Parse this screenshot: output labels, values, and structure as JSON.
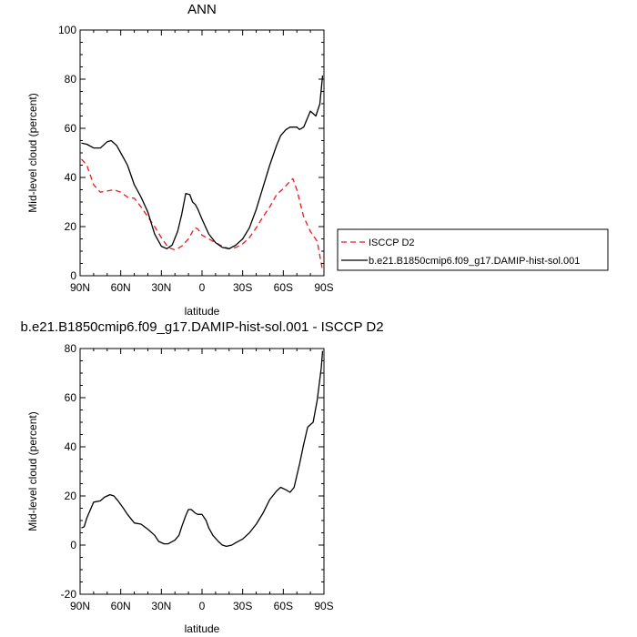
{
  "chart_data": [
    {
      "type": "line",
      "title": "ANN",
      "xlabel": "latitude",
      "ylabel": "Mid-level cloud (percent)",
      "xlim": [
        90,
        -90
      ],
      "ylim": [
        0,
        100
      ],
      "x_ticks": [
        {
          "value": 90,
          "label": "90N"
        },
        {
          "value": 60,
          "label": "60N"
        },
        {
          "value": 30,
          "label": "30N"
        },
        {
          "value": 0,
          "label": "0"
        },
        {
          "value": -30,
          "label": "30S"
        },
        {
          "value": -60,
          "label": "60S"
        },
        {
          "value": -90,
          "label": "90S"
        }
      ],
      "y_ticks": [
        0,
        20,
        40,
        60,
        80,
        100
      ],
      "grid": false,
      "legend_placement": "right",
      "series": [
        {
          "name": "ISCCP D2",
          "color": "#e8191e",
          "dash": "dashed",
          "points": [
            [
              89,
              47.5
            ],
            [
              85,
              45
            ],
            [
              80,
              37
            ],
            [
              75,
              34
            ],
            [
              70,
              34.5
            ],
            [
              65,
              35
            ],
            [
              60,
              34
            ],
            [
              55,
              32
            ],
            [
              50,
              31.5
            ],
            [
              45,
              28
            ],
            [
              40,
              24
            ],
            [
              35,
              20
            ],
            [
              30,
              15.5
            ],
            [
              25,
              11.5
            ],
            [
              20,
              10.5
            ],
            [
              15,
              12
            ],
            [
              10,
              15
            ],
            [
              7,
              18
            ],
            [
              5,
              19.5
            ],
            [
              3,
              19
            ],
            [
              0,
              16.5
            ],
            [
              -5,
              15
            ],
            [
              -10,
              13.5
            ],
            [
              -15,
              12
            ],
            [
              -20,
              11
            ],
            [
              -25,
              11.5
            ],
            [
              -30,
              13
            ],
            [
              -35,
              15.5
            ],
            [
              -40,
              19.5
            ],
            [
              -45,
              24
            ],
            [
              -50,
              28
            ],
            [
              -55,
              33
            ],
            [
              -60,
              35.5
            ],
            [
              -65,
              38.5
            ],
            [
              -67,
              39.5
            ],
            [
              -70,
              35
            ],
            [
              -75,
              24
            ],
            [
              -80,
              18
            ],
            [
              -85,
              14
            ],
            [
              -89,
              2
            ]
          ]
        },
        {
          "name": "b.e21.B1850cmip6.f09_g17.DAMIP-hist-sol.001",
          "color": "#000000",
          "dash": "solid",
          "points": [
            [
              89,
              54
            ],
            [
              85,
              53.5
            ],
            [
              80,
              52
            ],
            [
              75,
              52
            ],
            [
              70,
              54.5
            ],
            [
              67,
              55
            ],
            [
              63,
              53
            ],
            [
              60,
              50
            ],
            [
              55,
              45
            ],
            [
              50,
              37
            ],
            [
              45,
              32
            ],
            [
              40,
              26
            ],
            [
              35,
              17
            ],
            [
              30,
              12
            ],
            [
              26,
              11
            ],
            [
              22,
              12.5
            ],
            [
              18,
              18
            ],
            [
              15,
              25
            ],
            [
              12,
              33.5
            ],
            [
              9,
              33
            ],
            [
              7,
              30
            ],
            [
              5,
              29
            ],
            [
              3,
              27
            ],
            [
              0,
              23
            ],
            [
              -5,
              17
            ],
            [
              -10,
              13.5
            ],
            [
              -15,
              11.5
            ],
            [
              -20,
              11
            ],
            [
              -25,
              12.5
            ],
            [
              -30,
              15
            ],
            [
              -35,
              19.5
            ],
            [
              -40,
              27
            ],
            [
              -45,
              36
            ],
            [
              -50,
              45
            ],
            [
              -55,
              53
            ],
            [
              -58,
              57
            ],
            [
              -62,
              59.5
            ],
            [
              -65,
              60.5
            ],
            [
              -70,
              60.5
            ],
            [
              -72,
              59.5
            ],
            [
              -75,
              60.5
            ],
            [
              -80,
              67
            ],
            [
              -84,
              65
            ],
            [
              -87,
              70
            ],
            [
              -89,
              81.5
            ]
          ]
        }
      ]
    },
    {
      "type": "line",
      "title": "b.e21.B1850cmip6.f09_g17.DAMIP-hist-sol.001 - ISCCP D2",
      "xlabel": "latitude",
      "ylabel": "Mid-level cloud (percent)",
      "xlim": [
        90,
        -90
      ],
      "ylim": [
        -20,
        80
      ],
      "x_ticks": [
        {
          "value": 90,
          "label": "90N"
        },
        {
          "value": 60,
          "label": "60N"
        },
        {
          "value": 30,
          "label": "30N"
        },
        {
          "value": 0,
          "label": "0"
        },
        {
          "value": -30,
          "label": "30S"
        },
        {
          "value": -60,
          "label": "60S"
        },
        {
          "value": -90,
          "label": "90S"
        }
      ],
      "y_ticks": [
        -20,
        0,
        20,
        40,
        60,
        80
      ],
      "grid": false,
      "series": [
        {
          "color": "#000000",
          "dash": "solid",
          "points": [
            [
              89,
              7
            ],
            [
              87,
              7.5
            ],
            [
              85,
              11
            ],
            [
              80,
              17.5
            ],
            [
              75,
              18
            ],
            [
              72,
              19.5
            ],
            [
              68,
              20.5
            ],
            [
              65,
              20
            ],
            [
              62,
              18
            ],
            [
              58,
              15
            ],
            [
              55,
              12.5
            ],
            [
              50,
              9
            ],
            [
              45,
              8.5
            ],
            [
              40,
              6.5
            ],
            [
              35,
              4
            ],
            [
              32,
              1.5
            ],
            [
              28,
              0.5
            ],
            [
              25,
              0.5
            ],
            [
              20,
              2
            ],
            [
              17,
              4
            ],
            [
              15,
              7.5
            ],
            [
              12,
              12
            ],
            [
              10,
              14.5
            ],
            [
              8,
              14.5
            ],
            [
              5,
              13
            ],
            [
              3,
              12.5
            ],
            [
              0,
              12.5
            ],
            [
              -3,
              10
            ],
            [
              -5,
              7
            ],
            [
              -8,
              4
            ],
            [
              -12,
              1.5
            ],
            [
              -15,
              0
            ],
            [
              -18,
              -0.5
            ],
            [
              -22,
              0
            ],
            [
              -25,
              1
            ],
            [
              -30,
              2.5
            ],
            [
              -35,
              5
            ],
            [
              -40,
              8.5
            ],
            [
              -45,
              13
            ],
            [
              -50,
              18.5
            ],
            [
              -55,
              22
            ],
            [
              -58,
              23.5
            ],
            [
              -62,
              22.5
            ],
            [
              -65,
              21.5
            ],
            [
              -68,
              23.5
            ],
            [
              -72,
              33
            ],
            [
              -75,
              41
            ],
            [
              -78,
              48
            ],
            [
              -82,
              50
            ],
            [
              -85,
              59
            ],
            [
              -88,
              72
            ],
            [
              -89,
              79
            ]
          ]
        }
      ]
    }
  ]
}
